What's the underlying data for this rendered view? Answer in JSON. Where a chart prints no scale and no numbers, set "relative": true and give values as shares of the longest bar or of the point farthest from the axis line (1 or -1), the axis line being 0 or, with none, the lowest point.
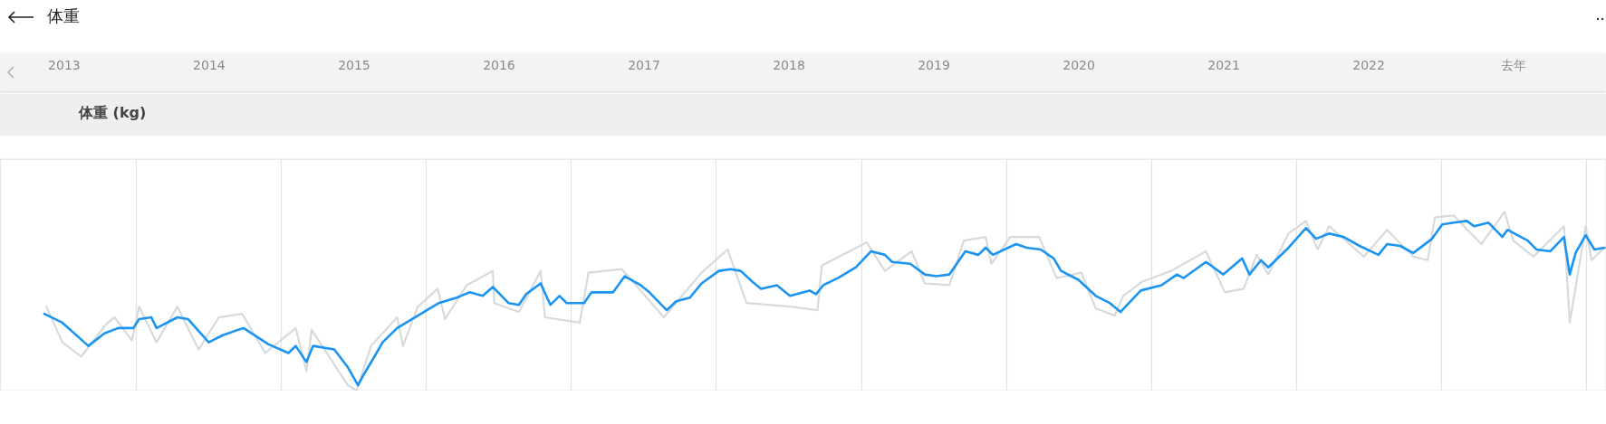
{
  "chart_data": {
    "type": "line",
    "title": "体重",
    "ylabel": "体重 (kg)",
    "relative": true,
    "grid": "x",
    "marker": "none",
    "line_style": "solid",
    "xlim": [
      2013.06,
      2024.14
    ],
    "xticks": [
      {
        "value": 2013.5,
        "label": "2013"
      },
      {
        "value": 2014,
        "label": null
      },
      {
        "value": 2014.5,
        "label": "2014"
      },
      {
        "value": 2015,
        "label": null
      },
      {
        "value": 2015.5,
        "label": "2015"
      },
      {
        "value": 2016,
        "label": null
      },
      {
        "value": 2016.5,
        "label": "2016"
      },
      {
        "value": 2017,
        "label": null
      },
      {
        "value": 2017.5,
        "label": "2017"
      },
      {
        "value": 2018,
        "label": null
      },
      {
        "value": 2018.5,
        "label": "2018"
      },
      {
        "value": 2019,
        "label": null
      },
      {
        "value": 2019.5,
        "label": "2019"
      },
      {
        "value": 2020,
        "label": null
      },
      {
        "value": 2020.5,
        "label": "2020"
      },
      {
        "value": 2021,
        "label": null
      },
      {
        "value": 2021.5,
        "label": "2021"
      },
      {
        "value": 2022,
        "label": null
      },
      {
        "value": 2022.5,
        "label": "2022"
      },
      {
        "value": 2023,
        "label": null
      },
      {
        "value": 2023.5,
        "label": "去年"
      },
      {
        "value": 2024,
        "label": null
      }
    ],
    "series": [
      {
        "color": "#d5dbdd",
        "x": [
          2013.38,
          2013.49,
          2013.62,
          2013.79,
          2013.85,
          2013.97,
          2014.02,
          2014.14,
          2014.284,
          2014.43,
          2014.57,
          2014.73,
          2014.89,
          2015.1,
          2015.174,
          2015.21,
          2015.46,
          2015.52,
          2015.62,
          2015.8,
          2015.84,
          2015.943,
          2016.08,
          2016.13,
          2016.28,
          2016.46,
          2016.47,
          2016.64,
          2016.79,
          2016.82,
          2017.06,
          2017.12,
          2017.35,
          2017.64,
          2017.9,
          2018.08,
          2018.21,
          2018.51,
          2018.7,
          2018.73,
          2019.04,
          2019.165,
          2019.35,
          2019.44,
          2019.61,
          2019.71,
          2019.86,
          2019.9,
          2020.03,
          2020.23,
          2020.35,
          2020.52,
          2020.62,
          2020.75,
          2020.81,
          2020.94,
          2021.14,
          2021.38,
          2021.51,
          2021.64,
          2021.73,
          2021.81,
          2021.95,
          2022.07,
          2022.15,
          2022.23,
          2022.47,
          2022.63,
          2022.81,
          2022.91,
          2022.96,
          2023.09,
          2023.28,
          2023.44,
          2023.5,
          2023.64,
          2023.85,
          2023.89,
          2024.0,
          2024.04,
          2024.13
        ],
        "values": [
          0.47,
          0.27,
          0.19,
          0.37,
          0.41,
          0.28,
          0.47,
          0.27,
          0.47,
          0.23,
          0.41,
          0.43,
          0.21,
          0.35,
          0.11,
          0.34,
          0.03,
          0.0,
          0.25,
          0.41,
          0.25,
          0.47,
          0.57,
          0.4,
          0.59,
          0.67,
          0.49,
          0.44,
          0.67,
          0.41,
          0.38,
          0.66,
          0.68,
          0.41,
          0.66,
          0.79,
          0.49,
          0.47,
          0.45,
          0.7,
          0.83,
          0.67,
          0.78,
          0.6,
          0.59,
          0.84,
          0.86,
          0.71,
          0.86,
          0.86,
          0.63,
          0.66,
          0.46,
          0.42,
          0.53,
          0.61,
          0.67,
          0.78,
          0.55,
          0.57,
          0.76,
          0.65,
          0.88,
          0.95,
          0.79,
          0.92,
          0.75,
          0.9,
          0.75,
          0.73,
          0.97,
          0.98,
          0.82,
          1.0,
          0.84,
          0.75,
          0.92,
          0.38,
          0.92,
          0.73,
          0.8
        ]
      },
      {
        "color": "#1a94f0",
        "x": [
          2013.366,
          2013.49,
          2013.67,
          2013.78,
          2013.876,
          2013.98,
          2014.02,
          2014.104,
          2014.14,
          2014.284,
          2014.357,
          2014.5,
          2014.597,
          2014.74,
          2014.91,
          2015.05,
          2015.1,
          2015.174,
          2015.22,
          2015.366,
          2015.46,
          2015.53,
          2015.57,
          2015.643,
          2015.7,
          2015.8,
          2015.943,
          2016.088,
          2016.21,
          2016.3,
          2016.39,
          2016.46,
          2016.568,
          2016.64,
          2016.69,
          2016.79,
          2016.857,
          2016.92,
          2016.97,
          2017.09,
          2017.14,
          2017.29,
          2017.37,
          2017.48,
          2017.54,
          2017.66,
          2017.725,
          2017.82,
          2017.9,
          2018.02,
          2018.1,
          2018.17,
          2018.25,
          2018.31,
          2018.42,
          2018.51,
          2018.645,
          2018.69,
          2018.74,
          2018.84,
          2018.965,
          2019.07,
          2019.165,
          2019.215,
          2019.34,
          2019.44,
          2019.52,
          2019.61,
          2019.72,
          2019.81,
          2019.86,
          2019.91,
          2020.07,
          2020.143,
          2020.24,
          2020.33,
          2020.38,
          2020.5,
          2020.62,
          2020.717,
          2020.79,
          2020.93,
          2021.073,
          2021.18,
          2021.226,
          2021.38,
          2021.5,
          2021.63,
          2021.68,
          2021.76,
          2021.81,
          2021.95,
          2022.07,
          2022.14,
          2022.23,
          2022.33,
          2022.44,
          2022.57,
          2022.63,
          2022.72,
          2022.81,
          2022.94,
          2023.01,
          2023.09,
          2023.18,
          2023.23,
          2023.33,
          2023.425,
          2023.46,
          2023.6,
          2023.66,
          2023.756,
          2023.85,
          2023.89,
          2023.93,
          2024.0,
          2024.06,
          2024.13
        ],
        "values": [
          0.43,
          0.38,
          0.25,
          0.32,
          0.35,
          0.35,
          0.4,
          0.41,
          0.35,
          0.41,
          0.4,
          0.27,
          0.31,
          0.35,
          0.26,
          0.21,
          0.25,
          0.16,
          0.25,
          0.23,
          0.13,
          0.03,
          0.09,
          0.19,
          0.27,
          0.35,
          0.42,
          0.49,
          0.52,
          0.55,
          0.53,
          0.58,
          0.49,
          0.48,
          0.54,
          0.6,
          0.48,
          0.53,
          0.49,
          0.49,
          0.55,
          0.55,
          0.64,
          0.59,
          0.55,
          0.45,
          0.5,
          0.52,
          0.6,
          0.67,
          0.68,
          0.67,
          0.61,
          0.57,
          0.59,
          0.53,
          0.56,
          0.54,
          0.59,
          0.63,
          0.69,
          0.78,
          0.76,
          0.72,
          0.71,
          0.65,
          0.64,
          0.65,
          0.78,
          0.76,
          0.8,
          0.76,
          0.82,
          0.8,
          0.79,
          0.74,
          0.67,
          0.62,
          0.53,
          0.49,
          0.44,
          0.56,
          0.59,
          0.65,
          0.63,
          0.72,
          0.65,
          0.74,
          0.65,
          0.73,
          0.69,
          0.8,
          0.91,
          0.85,
          0.88,
          0.86,
          0.81,
          0.76,
          0.82,
          0.81,
          0.77,
          0.85,
          0.93,
          0.94,
          0.95,
          0.92,
          0.94,
          0.86,
          0.9,
          0.84,
          0.79,
          0.78,
          0.86,
          0.65,
          0.77,
          0.87,
          0.79,
          0.8
        ]
      }
    ]
  }
}
